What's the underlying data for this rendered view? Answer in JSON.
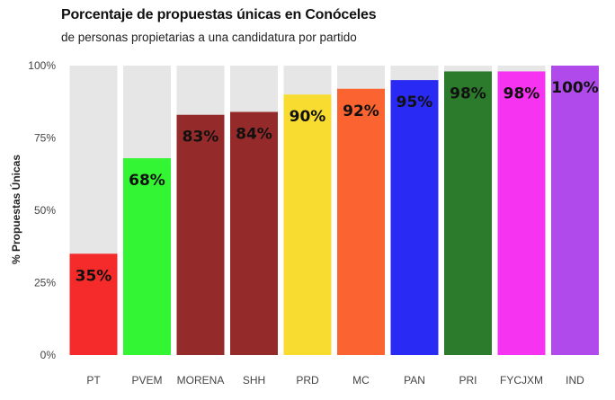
{
  "chart_data": {
    "type": "bar",
    "title": "Porcentaje de propuestas únicas en Conóceles",
    "subtitle": "de personas propietarias a una candidatura por partido",
    "xlabel": "",
    "ylabel": "% Propuestas Únicas",
    "ylim": [
      0,
      100
    ],
    "yticks": [
      "0%",
      "25%",
      "50%",
      "75%",
      "100%"
    ],
    "yticks_values": [
      0,
      25,
      50,
      75,
      100
    ],
    "categories": [
      "PT",
      "PVEM",
      "MORENA",
      "SHH",
      "PRD",
      "MC",
      "PAN",
      "PRI",
      "FYCJXM",
      "IND"
    ],
    "values": [
      35,
      68,
      83,
      84,
      90,
      92,
      95,
      98,
      98,
      100
    ],
    "labels": [
      "35%",
      "68%",
      "83%",
      "84%",
      "90%",
      "92%",
      "95%",
      "98%",
      "98%",
      "100%"
    ],
    "colors": [
      "#f52a2a",
      "#33f533",
      "#952a2a",
      "#952a2a",
      "#f8dc2f",
      "#fb6330",
      "#2a2af5",
      "#2c7a2c",
      "#f533f0",
      "#b04aea"
    ],
    "background_bar_color": "#e6e6e6",
    "grid": false,
    "legend": "none"
  }
}
